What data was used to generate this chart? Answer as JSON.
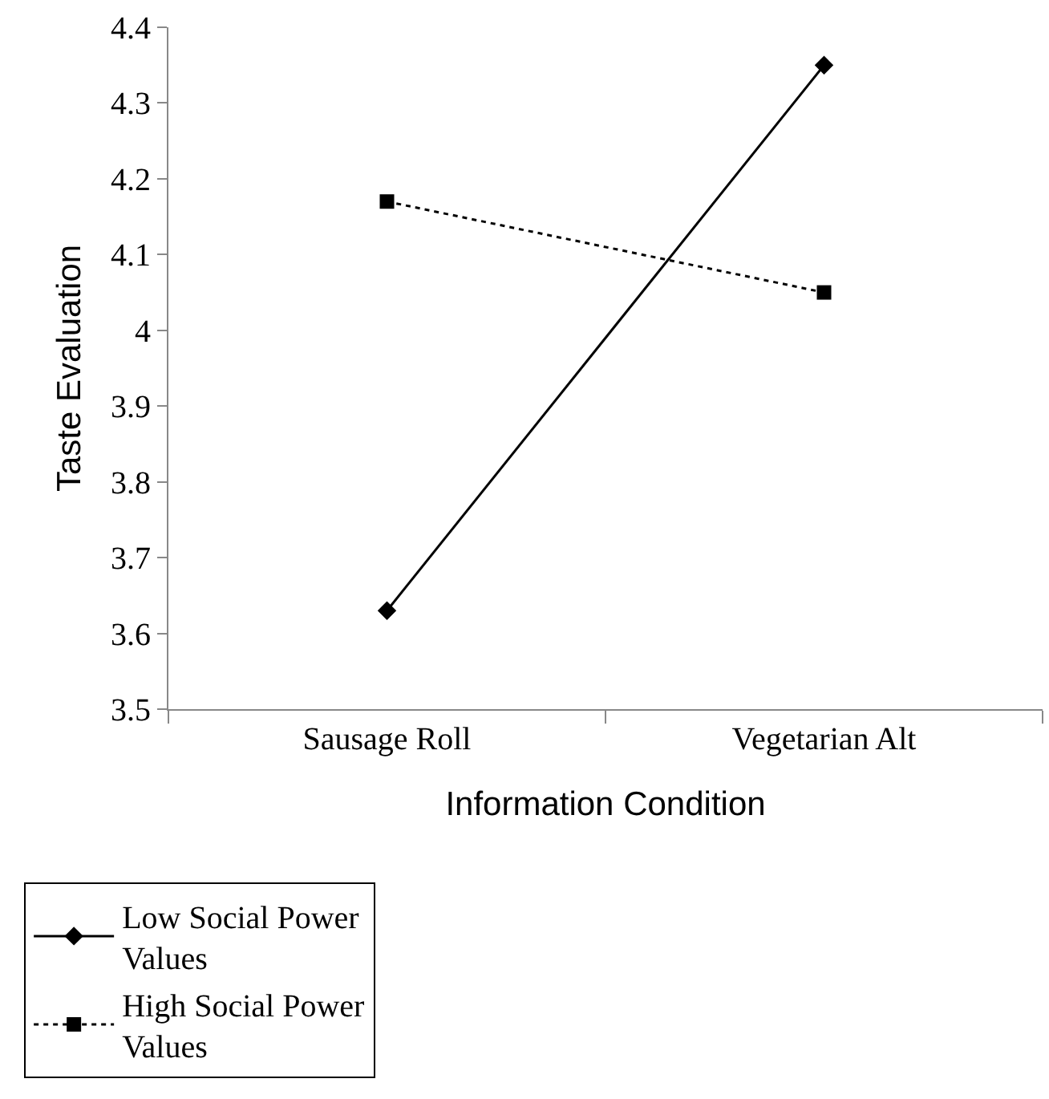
{
  "chart_data": {
    "type": "line",
    "xlabel": "Information Condition",
    "ylabel": "Taste Evaluation",
    "categories": [
      "Sausage Roll",
      "Vegetarian Alt"
    ],
    "ylim": [
      3.5,
      4.4
    ],
    "yticks": [
      3.5,
      3.6,
      3.7,
      3.8,
      3.9,
      4,
      4.1,
      4.2,
      4.3,
      4.4
    ],
    "grid": false,
    "legend": "bottom left",
    "series": [
      {
        "name": "Low Social Power Values",
        "color": "#000000",
        "values": [
          3.63,
          4.35
        ],
        "marker": "diamond",
        "line_style": "solid"
      },
      {
        "name": "High Social Power Values",
        "color": "#000000",
        "values": [
          4.17,
          4.05
        ],
        "marker": "square",
        "line_style": "dotted"
      }
    ]
  }
}
